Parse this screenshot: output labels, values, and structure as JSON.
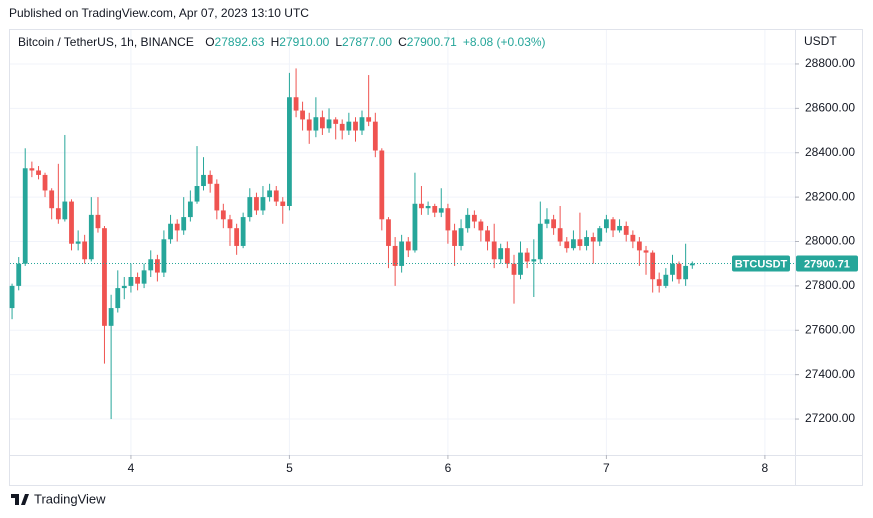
{
  "published": "Published on TradingView.com, Apr 07, 2023 13:10 UTC",
  "footer_logo": "TradingView",
  "chart_data": {
    "type": "candlestick",
    "title": "Bitcoin / TetherUS, 1h, BINANCE",
    "ohlc_legend": [
      {
        "key": "O",
        "text": "27892.63"
      },
      {
        "key": "H",
        "text": "27910.00"
      },
      {
        "key": "L",
        "text": "27877.00"
      },
      {
        "key": "C",
        "text": "27900.71"
      }
    ],
    "change": "+8.08 (+0.03%)",
    "y_axis_unit": "USDT",
    "up_color": "#26a69a",
    "down_color": "#ef5350",
    "grid": true,
    "last_price": {
      "symbol": "BTCUSDT",
      "value": 27900.71
    },
    "xlim": [
      3.237,
      8.19
    ],
    "xticks": [
      4,
      5,
      6,
      7,
      8
    ],
    "ylim": [
      27038,
      28953
    ],
    "yticks": [
      {
        "value": 27200,
        "label": "27200.00"
      },
      {
        "value": 27400,
        "label": "27400.00"
      },
      {
        "value": 27600,
        "label": "27600.00"
      },
      {
        "value": 27800,
        "label": "27800.00"
      },
      {
        "value": 28000,
        "label": "28000.00"
      },
      {
        "value": 28200,
        "label": "28200.00"
      },
      {
        "value": 28400,
        "label": "28400.00"
      },
      {
        "value": 28600,
        "label": "28600.00"
      },
      {
        "value": 28800,
        "label": "28800.00"
      }
    ],
    "x": [
      3.25,
      3.292,
      3.333,
      3.375,
      3.417,
      3.458,
      3.5,
      3.542,
      3.583,
      3.625,
      3.667,
      3.708,
      3.75,
      3.792,
      3.833,
      3.875,
      3.917,
      3.958,
      4,
      4.042,
      4.083,
      4.125,
      4.167,
      4.208,
      4.25,
      4.292,
      4.333,
      4.375,
      4.417,
      4.458,
      4.5,
      4.542,
      4.583,
      4.625,
      4.667,
      4.708,
      4.75,
      4.792,
      4.833,
      4.875,
      4.917,
      4.958,
      5,
      5.042,
      5.083,
      5.125,
      5.167,
      5.208,
      5.25,
      5.292,
      5.333,
      5.375,
      5.417,
      5.458,
      5.5,
      5.542,
      5.583,
      5.625,
      5.667,
      5.708,
      5.75,
      5.792,
      5.833,
      5.875,
      5.917,
      5.958,
      6,
      6.042,
      6.083,
      6.125,
      6.167,
      6.208,
      6.25,
      6.292,
      6.333,
      6.375,
      6.417,
      6.458,
      6.5,
      6.542,
      6.583,
      6.625,
      6.667,
      6.708,
      6.75,
      6.792,
      6.833,
      6.875,
      6.917,
      6.958,
      7,
      7.042,
      7.083,
      7.125,
      7.167,
      7.208,
      7.25,
      7.292,
      7.333,
      7.375,
      7.417,
      7.458,
      7.5,
      7.542
    ],
    "open": [
      27700,
      27800,
      27900,
      28330,
      28320,
      28300,
      28230,
      28150,
      28100,
      28180,
      27990,
      28000,
      27920,
      28120,
      28060,
      27620,
      27700,
      27790,
      27800,
      27840,
      27810,
      27870,
      27920,
      27860,
      28010,
      28080,
      28050,
      28110,
      28180,
      28250,
      28300,
      28260,
      28140,
      28100,
      28060,
      27980,
      28110,
      28200,
      28140,
      28200,
      28230,
      28180,
      28160,
      28650,
      28590,
      28550,
      28500,
      28560,
      28510,
      28550,
      28530,
      28500,
      28540,
      28500,
      28560,
      28540,
      28410,
      28100,
      27980,
      27890,
      28000,
      27960,
      28170,
      28150,
      28160,
      28130,
      28150,
      28050,
      27980,
      28060,
      28120,
      28090,
      28050,
      28000,
      27920,
      27970,
      27900,
      27850,
      27950,
      27910,
      27920,
      28080,
      28100,
      28060,
      28000,
      27970,
      28010,
      27980,
      28020,
      28000,
      28060,
      28100,
      28050,
      28070,
      28030,
      28000,
      27960,
      27950,
      27830,
      27800,
      27850,
      27900,
      27830,
      27892.63
    ],
    "high": [
      27810,
      27930,
      28420,
      28360,
      28340,
      28310,
      28240,
      28350,
      28480,
      28190,
      28050,
      28030,
      28200,
      28200,
      28070,
      27760,
      27870,
      27840,
      27900,
      27860,
      27900,
      27960,
      27940,
      28050,
      28120,
      28100,
      28200,
      28230,
      28430,
      28380,
      28320,
      28280,
      28170,
      28120,
      28080,
      28130,
      28240,
      28220,
      28250,
      28260,
      28250,
      28200,
      28760,
      28780,
      28630,
      28580,
      28650,
      28590,
      28600,
      28560,
      28550,
      28580,
      28560,
      28590,
      28750,
      28580,
      28420,
      28110,
      28020,
      28030,
      28020,
      28310,
      28250,
      28180,
      28170,
      28240,
      28170,
      28080,
      28100,
      28150,
      28140,
      28100,
      28070,
      28080,
      27990,
      28000,
      27940,
      28000,
      27970,
      28010,
      28180,
      28150,
      28120,
      28160,
      28020,
      28050,
      28130,
      28050,
      28040,
      28070,
      28120,
      28110,
      28100,
      28090,
      28050,
      28020,
      27980,
      27960,
      27860,
      27880,
      27940,
      27910,
      27990,
      27910
    ],
    "low": [
      27650,
      27780,
      27890,
      28290,
      28280,
      28200,
      28100,
      28080,
      28090,
      27960,
      27960,
      27900,
      27910,
      28040,
      27450,
      27200,
      27680,
      27740,
      27770,
      27780,
      27790,
      27840,
      27820,
      27840,
      27990,
      28000,
      28030,
      28090,
      28170,
      28230,
      28220,
      28100,
      28060,
      27980,
      27940,
      27970,
      28090,
      28120,
      28120,
      28180,
      28160,
      28080,
      28140,
      28560,
      28500,
      28440,
      28470,
      28480,
      28490,
      28460,
      28460,
      28480,
      28450,
      28480,
      28520,
      28380,
      28050,
      27880,
      27800,
      27860,
      27930,
      27950,
      28120,
      28120,
      28110,
      28110,
      27990,
      27890,
      27960,
      28040,
      28060,
      28000,
      27960,
      27880,
      27900,
      27880,
      27720,
      27830,
      27880,
      27750,
      27900,
      28060,
      28030,
      27980,
      27950,
      27960,
      27960,
      27960,
      27900,
      27980,
      28040,
      28020,
      28040,
      28000,
      27970,
      27890,
      27850,
      27770,
      27770,
      27790,
      27820,
      27810,
      27800,
      27877
    ],
    "close": [
      27800,
      27900,
      28330,
      28320,
      28300,
      28230,
      28150,
      28100,
      28180,
      27990,
      28000,
      27920,
      28120,
      28060,
      27620,
      27700,
      27790,
      27800,
      27840,
      27810,
      27870,
      27920,
      27860,
      28010,
      28080,
      28050,
      28110,
      28180,
      28250,
      28300,
      28260,
      28140,
      28100,
      28060,
      27980,
      28110,
      28200,
      28140,
      28200,
      28230,
      28180,
      28160,
      28650,
      28590,
      28550,
      28500,
      28560,
      28510,
      28550,
      28530,
      28500,
      28540,
      28500,
      28560,
      28540,
      28410,
      28100,
      27980,
      27890,
      28000,
      27960,
      28170,
      28150,
      28160,
      28130,
      28150,
      28050,
      27980,
      28060,
      28120,
      28090,
      28050,
      28000,
      27920,
      27970,
      27900,
      27850,
      27950,
      27910,
      27920,
      28080,
      28100,
      28060,
      28000,
      27970,
      28010,
      27980,
      28020,
      28000,
      28060,
      28100,
      28050,
      28070,
      28030,
      28000,
      27960,
      27950,
      27830,
      27800,
      27850,
      27900,
      27830,
      27890,
      27900.71
    ]
  }
}
